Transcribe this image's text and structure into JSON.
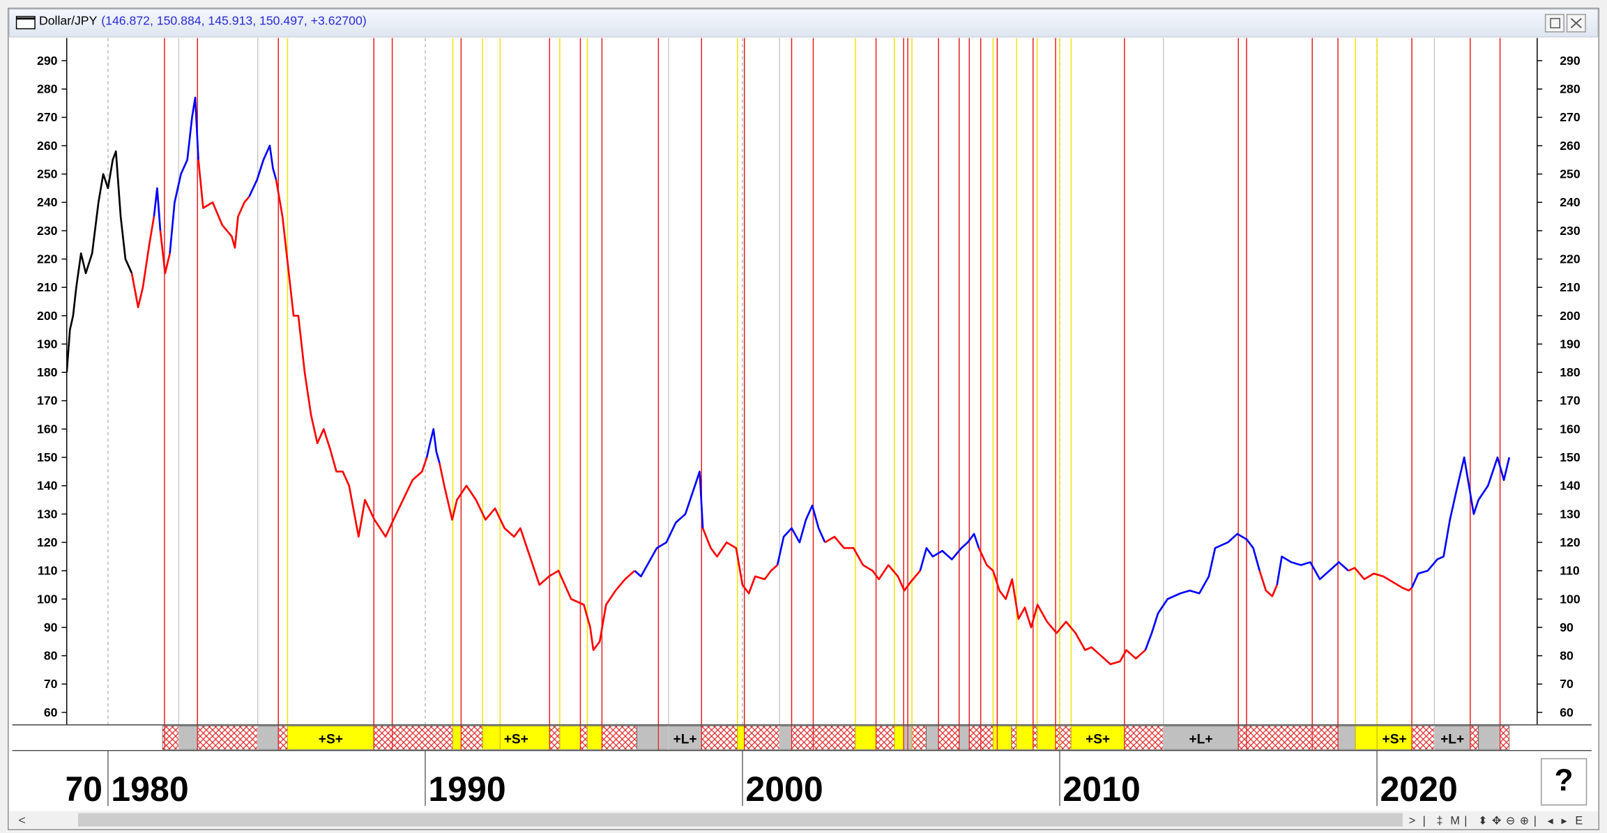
{
  "chart_data": {
    "type": "line",
    "title": "Dollar/JPY",
    "ohlc": "(146.872, 150.884, 145.913, 150.497, +3.62700)",
    "first_label": "70",
    "help": "?",
    "toolbar": [
      ">",
      "|",
      "‡",
      "M",
      "|",
      "⬍",
      "✥",
      "⊖",
      "⊕",
      "|",
      "◂",
      "▸",
      "E"
    ],
    "xlim": [
      1978.7,
      2025.05
    ],
    "xticks": [
      1980,
      1990,
      2000,
      2010,
      2020
    ],
    "ylim": [
      55.6,
      298
    ],
    "yticks": [
      60,
      70,
      80,
      90,
      100,
      110,
      120,
      130,
      140,
      150,
      160,
      170,
      180,
      190,
      200,
      210,
      220,
      230,
      240,
      250,
      260,
      270,
      280,
      290
    ],
    "series": [
      {
        "color": "#000000",
        "x": [
          1978.7,
          1978.8,
          1978.9,
          1979.0,
          1979.15,
          1979.3,
          1979.5,
          1979.7,
          1979.85,
          1980.0,
          1980.15,
          1980.25,
          1980.4,
          1980.55,
          1980.75
        ],
        "values": [
          180,
          195,
          200,
          210,
          222,
          215,
          222,
          240,
          250,
          245,
          255,
          258,
          235,
          220,
          215
        ]
      },
      {
        "color": "#ff0000",
        "x": [
          1980.75,
          1980.95,
          1981.1,
          1981.3,
          1981.45
        ],
        "values": [
          215,
          203,
          210,
          225,
          235
        ]
      },
      {
        "color": "#0000ff",
        "x": [
          1981.45,
          1981.55,
          1981.65
        ],
        "values": [
          235,
          245,
          230
        ]
      },
      {
        "color": "#ff0000",
        "x": [
          1981.65,
          1981.8,
          1981.95
        ],
        "values": [
          230,
          215,
          222
        ]
      },
      {
        "color": "#0000ff",
        "x": [
          1981.95,
          1982.1,
          1982.3,
          1982.5,
          1982.65,
          1982.75,
          1982.85
        ],
        "values": [
          222,
          240,
          250,
          255,
          270,
          277,
          255
        ]
      },
      {
        "color": "#ff0000",
        "x": [
          1982.85,
          1983.0,
          1983.3,
          1983.6,
          1983.9,
          1984.0,
          1984.1,
          1984.3,
          1984.45
        ],
        "values": [
          255,
          238,
          240,
          232,
          228,
          224,
          235,
          240,
          242
        ]
      },
      {
        "color": "#0000ff",
        "x": [
          1984.45,
          1984.7,
          1984.9,
          1985.1,
          1985.2,
          1985.3
        ],
        "values": [
          242,
          248,
          255,
          260,
          252,
          248
        ]
      },
      {
        "color": "#ff0000",
        "x": [
          1985.3,
          1985.5,
          1985.7,
          1985.85,
          1986.0,
          1986.2,
          1986.4,
          1986.6,
          1986.8,
          1987.0,
          1987.2,
          1987.4,
          1987.6,
          1987.9,
          1988.1,
          1988.4,
          1988.75,
          1989.0,
          1989.3,
          1989.6,
          1989.9,
          1990.05
        ],
        "values": [
          248,
          235,
          215,
          200,
          200,
          180,
          165,
          155,
          160,
          153,
          145,
          145,
          140,
          122,
          135,
          128,
          122,
          128,
          135,
          142,
          145,
          150
        ]
      },
      {
        "color": "#0000ff",
        "x": [
          1990.05,
          1990.15,
          1990.26,
          1990.35,
          1990.45
        ],
        "values": [
          150,
          155,
          160,
          152,
          148
        ]
      },
      {
        "color": "#ff0000",
        "x": [
          1990.45,
          1990.6,
          1990.85,
          1991.0,
          1991.3,
          1991.6,
          1991.9,
          1992.2,
          1992.5,
          1992.8,
          1993.0,
          1993.3,
          1993.6,
          1993.9,
          1994.2,
          1994.6,
          1995.0,
          1995.2,
          1995.3,
          1995.5,
          1995.7,
          1996.0,
          1996.3,
          1996.6
        ],
        "values": [
          148,
          140,
          128,
          135,
          140,
          135,
          128,
          132,
          125,
          122,
          125,
          115,
          105,
          108,
          110,
          100,
          98,
          90,
          82,
          85,
          98,
          103,
          107,
          110
        ]
      },
      {
        "color": "#0000ff",
        "x": [
          1996.6,
          1996.8,
          1997.0,
          1997.3,
          1997.6,
          1997.9,
          1998.2,
          1998.5,
          1998.65,
          1998.75
        ],
        "values": [
          110,
          108,
          112,
          118,
          120,
          127,
          130,
          140,
          145,
          125
        ]
      },
      {
        "color": "#ff0000",
        "x": [
          1998.75,
          1999.0,
          1999.2,
          1999.5,
          1999.8,
          2000.0,
          2000.2,
          2000.4,
          2000.7,
          2000.9,
          2001.1
        ],
        "values": [
          125,
          118,
          115,
          120,
          118,
          105,
          102,
          108,
          107,
          110,
          112
        ]
      },
      {
        "color": "#0000ff",
        "x": [
          2001.1,
          2001.3,
          2001.55,
          2001.8,
          2002.0,
          2002.2,
          2002.4,
          2002.6
        ],
        "values": [
          112,
          122,
          125,
          120,
          128,
          133,
          125,
          120
        ]
      },
      {
        "color": "#ff0000",
        "x": [
          2002.6,
          2002.9,
          2003.2,
          2003.5,
          2003.8,
          2004.1,
          2004.3,
          2004.6,
          2004.9,
          2005.1,
          2005.3,
          2005.6
        ],
        "values": [
          120,
          122,
          118,
          118,
          112,
          110,
          107,
          112,
          108,
          103,
          106,
          110
        ]
      },
      {
        "color": "#0000ff",
        "x": [
          2005.6,
          2005.8,
          2006.0,
          2006.3,
          2006.6,
          2006.9,
          2007.1,
          2007.3,
          2007.45
        ],
        "values": [
          110,
          118,
          115,
          117,
          114,
          118,
          120,
          123,
          118
        ]
      },
      {
        "color": "#ff0000",
        "x": [
          2007.45,
          2007.7,
          2007.9,
          2008.1,
          2008.3,
          2008.5,
          2008.7,
          2008.9,
          2009.1,
          2009.3,
          2009.6,
          2009.9,
          2010.2,
          2010.5,
          2010.8,
          2011.0,
          2011.3,
          2011.6,
          2011.9,
          2012.1,
          2012.4,
          2012.7
        ],
        "values": [
          118,
          112,
          110,
          103,
          100,
          107,
          93,
          97,
          90,
          98,
          92,
          88,
          92,
          88,
          82,
          83,
          80,
          77,
          78,
          82,
          79,
          82
        ]
      },
      {
        "color": "#0000ff",
        "x": [
          2012.7,
          2012.9,
          2013.1,
          2013.4,
          2013.8,
          2014.1,
          2014.4,
          2014.7,
          2014.9,
          2015.3,
          2015.6,
          2015.9,
          2016.1,
          2016.3
        ],
        "values": [
          82,
          88,
          95,
          100,
          102,
          103,
          102,
          108,
          118,
          120,
          123,
          121,
          118,
          110
        ]
      },
      {
        "color": "#ff0000",
        "x": [
          2016.3,
          2016.5,
          2016.7,
          2016.85
        ],
        "values": [
          110,
          103,
          101,
          105
        ]
      },
      {
        "color": "#0000ff",
        "x": [
          2016.85,
          2017.0,
          2017.3,
          2017.6,
          2017.9,
          2018.2,
          2018.5,
          2018.8,
          2019.1
        ],
        "values": [
          105,
          115,
          113,
          112,
          113,
          107,
          110,
          113,
          110
        ]
      },
      {
        "color": "#ff0000",
        "x": [
          2019.1,
          2019.3,
          2019.6,
          2019.9,
          2020.2,
          2020.5,
          2020.8,
          2021.0,
          2021.1
        ],
        "values": [
          110,
          111,
          107,
          109,
          108,
          106,
          104,
          103,
          104
        ]
      },
      {
        "color": "#0000ff",
        "x": [
          2021.1,
          2021.3,
          2021.6,
          2021.9,
          2022.1,
          2022.3,
          2022.5,
          2022.75,
          2022.9,
          2023.05,
          2023.2,
          2023.5,
          2023.8,
          2024.0,
          2024.17
        ],
        "values": [
          104,
          109,
          110,
          114,
          115,
          128,
          138,
          150,
          140,
          130,
          135,
          140,
          150,
          142,
          150
        ]
      }
    ],
    "event_lines": [
      {
        "color": "#c8c8c8",
        "x": [
          1982.23,
          1984.72,
          1997.67,
          2001.17,
          2013.27,
          2021.81
        ]
      },
      {
        "color": "#f2e200",
        "x": [
          1985.66,
          1990.87,
          1991.81,
          1992.36,
          1994.24,
          1995.11,
          1999.84,
          2003.56,
          2004.79,
          2005.34,
          2007.9,
          2008.64,
          2009.29,
          2010.0,
          2010.36,
          2019.32,
          2020.0
        ]
      },
      {
        "color": "#e41a1a",
        "x": [
          1981.78,
          1982.82,
          1985.37,
          1988.38,
          1988.96,
          1991.13,
          1993.92,
          1994.89,
          1995.57,
          1997.35,
          1998.71,
          2000.06,
          2001.55,
          2002.23,
          2004.21,
          2005.08,
          2005.21,
          2006.18,
          2006.83,
          2007.15,
          2007.51,
          2008.03,
          2009.16,
          2009.87,
          2012.04,
          2015.63,
          2015.89,
          2017.96,
          2018.77,
          2021.1,
          2022.94,
          2023.88
        ]
      }
    ],
    "bands": [
      {
        "start": 1981.72,
        "end": 1982.23,
        "fill": "hatch"
      },
      {
        "start": 1982.23,
        "end": 1982.82,
        "fill": "#c0c0c0"
      },
      {
        "start": 1982.82,
        "end": 1984.72,
        "fill": "hatch"
      },
      {
        "start": 1984.72,
        "end": 1985.37,
        "fill": "#c0c0c0"
      },
      {
        "start": 1985.37,
        "end": 1985.66,
        "fill": "hatch"
      },
      {
        "start": 1985.66,
        "end": 1988.38,
        "fill": "#ffff00",
        "label": "+S+"
      },
      {
        "start": 1988.38,
        "end": 1990.87,
        "fill": "hatch"
      },
      {
        "start": 1990.87,
        "end": 1991.13,
        "fill": "#ffff00"
      },
      {
        "start": 1991.13,
        "end": 1991.81,
        "fill": "hatch"
      },
      {
        "start": 1991.81,
        "end": 1993.92,
        "fill": "#ffff00",
        "label": "+S+"
      },
      {
        "start": 1993.92,
        "end": 1994.24,
        "fill": "hatch"
      },
      {
        "start": 1994.24,
        "end": 1994.89,
        "fill": "#ffff00"
      },
      {
        "start": 1994.89,
        "end": 1995.11,
        "fill": "hatch"
      },
      {
        "start": 1995.11,
        "end": 1995.57,
        "fill": "#ffff00"
      },
      {
        "start": 1995.57,
        "end": 1996.67,
        "fill": "hatch"
      },
      {
        "start": 1996.67,
        "end": 1997.67,
        "fill": "#c0c0c0"
      },
      {
        "start": 1997.67,
        "end": 1998.71,
        "fill": "#c0c0c0",
        "label": "+L+"
      },
      {
        "start": 1998.71,
        "end": 1999.84,
        "fill": "hatch"
      },
      {
        "start": 1999.84,
        "end": 2000.06,
        "fill": "#ffff00"
      },
      {
        "start": 2000.06,
        "end": 2001.17,
        "fill": "hatch"
      },
      {
        "start": 2001.17,
        "end": 2001.55,
        "fill": "#c0c0c0"
      },
      {
        "start": 2001.55,
        "end": 2003.56,
        "fill": "hatch"
      },
      {
        "start": 2003.56,
        "end": 2004.21,
        "fill": "#ffff00"
      },
      {
        "start": 2004.21,
        "end": 2004.79,
        "fill": "hatch"
      },
      {
        "start": 2004.79,
        "end": 2005.08,
        "fill": "#ffff00"
      },
      {
        "start": 2005.08,
        "end": 2005.34,
        "fill": "#c0c0c0"
      },
      {
        "start": 2005.34,
        "end": 2005.79,
        "fill": "hatch"
      },
      {
        "start": 2005.79,
        "end": 2006.18,
        "fill": "#c0c0c0"
      },
      {
        "start": 2006.18,
        "end": 2006.83,
        "fill": "hatch"
      },
      {
        "start": 2006.83,
        "end": 2007.15,
        "fill": "#c0c0c0"
      },
      {
        "start": 2007.15,
        "end": 2007.9,
        "fill": "hatch"
      },
      {
        "start": 2007.9,
        "end": 2008.48,
        "fill": "#ffff00"
      },
      {
        "start": 2008.48,
        "end": 2008.64,
        "fill": "hatch"
      },
      {
        "start": 2008.64,
        "end": 2009.16,
        "fill": "#ffff00"
      },
      {
        "start": 2009.16,
        "end": 2009.29,
        "fill": "hatch"
      },
      {
        "start": 2009.29,
        "end": 2009.87,
        "fill": "#ffff00"
      },
      {
        "start": 2009.87,
        "end": 2010.36,
        "fill": "hatch"
      },
      {
        "start": 2010.36,
        "end": 2012.04,
        "fill": "#ffff00",
        "label": "+S+"
      },
      {
        "start": 2012.04,
        "end": 2013.27,
        "fill": "hatch"
      },
      {
        "start": 2013.27,
        "end": 2015.63,
        "fill": "#c0c0c0",
        "label": "+L+"
      },
      {
        "start": 2015.63,
        "end": 2018.77,
        "fill": "hatch"
      },
      {
        "start": 2018.77,
        "end": 2019.32,
        "fill": "#c0c0c0"
      },
      {
        "start": 2019.32,
        "end": 2020.0,
        "fill": "#ffff00"
      },
      {
        "start": 2020.0,
        "end": 2021.1,
        "fill": "#ffff00",
        "label": "+S+"
      },
      {
        "start": 2021.1,
        "end": 2021.81,
        "fill": "hatch"
      },
      {
        "start": 2021.81,
        "end": 2022.94,
        "fill": "#c0c0c0",
        "label": "+L+"
      },
      {
        "start": 2022.94,
        "end": 2023.2,
        "fill": "hatch"
      },
      {
        "start": 2023.2,
        "end": 2023.88,
        "fill": "#c0c0c0"
      },
      {
        "start": 2023.88,
        "end": 2024.17,
        "fill": "hatch"
      }
    ]
  }
}
